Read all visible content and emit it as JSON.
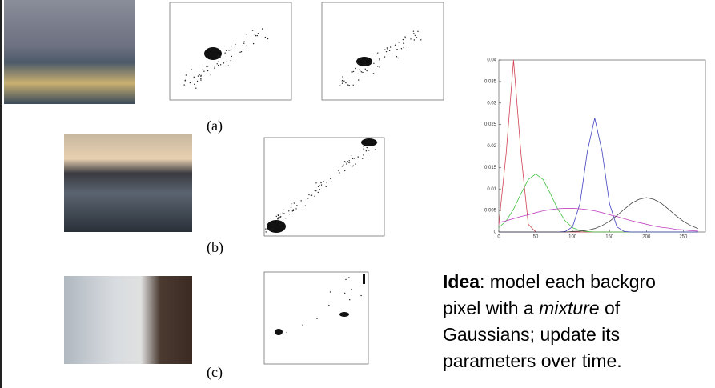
{
  "figures": {
    "labels": [
      "(a)",
      "(b)",
      "(c)"
    ]
  },
  "idea": {
    "lines": [
      [
        {
          "text": "Idea",
          "style": "bold"
        },
        {
          "text": ": model each backgro"
        }
      ],
      [
        {
          "text": "pixel with a "
        },
        {
          "text": "mixture",
          "style": "italic"
        },
        {
          "text": " of"
        }
      ],
      [
        {
          "text": "Gaussians; update its"
        }
      ],
      [
        {
          "text": "parameters over time."
        }
      ]
    ]
  },
  "chart_data": {
    "type": "line",
    "x": [
      0,
      10,
      20,
      30,
      40,
      50,
      60,
      70,
      80,
      90,
      100,
      110,
      120,
      130,
      140,
      150,
      160,
      170,
      180,
      190,
      200,
      210,
      220,
      230,
      240,
      250,
      260,
      270
    ],
    "series": [
      {
        "color": "#d04050",
        "values": [
          0.0018,
          0.0183,
          0.04,
          0.0183,
          0.0018,
          0,
          0,
          0,
          0,
          0,
          0,
          0,
          0,
          0,
          0,
          0,
          0,
          0,
          0,
          0,
          0,
          0,
          0,
          0,
          0,
          0,
          0,
          0
        ]
      },
      {
        "color": "#40c040",
        "values": [
          0.001,
          0.0026,
          0.0053,
          0.0089,
          0.0122,
          0.0135,
          0.0122,
          0.0089,
          0.0053,
          0.0026,
          0.001,
          0.0003,
          0.0001,
          0,
          0,
          0,
          0,
          0,
          0,
          0,
          0,
          0,
          0,
          0,
          0,
          0,
          0,
          0
        ]
      },
      {
        "color": "#4040c0",
        "values": [
          0,
          0,
          0,
          0,
          0,
          0,
          0,
          0,
          0,
          0.0001,
          0.0012,
          0.0066,
          0.0187,
          0.0265,
          0.0187,
          0.0066,
          0.0012,
          0.0001,
          0,
          0,
          0,
          0,
          0,
          0,
          0,
          0,
          0,
          0
        ]
      },
      {
        "color": "#c040c0",
        "values": [
          0.0022,
          0.0026,
          0.0031,
          0.0036,
          0.004,
          0.0045,
          0.0049,
          0.0052,
          0.0054,
          0.0055,
          0.0055,
          0.0054,
          0.0052,
          0.0049,
          0.0045,
          0.004,
          0.0036,
          0.0031,
          0.0026,
          0.0022,
          0.0018,
          0.0014,
          0.0011,
          0.0009,
          0.0006,
          0.0005,
          0.0003,
          0.0002
        ]
      },
      {
        "color": "#404040",
        "values": [
          0,
          0,
          0,
          0,
          0,
          0,
          0,
          0,
          0,
          0,
          0.0001,
          0.0002,
          0.0004,
          0.0008,
          0.0015,
          0.0025,
          0.0038,
          0.0053,
          0.0067,
          0.0076,
          0.008,
          0.0076,
          0.0067,
          0.0053,
          0.0038,
          0.0025,
          0.0015,
          0.0008
        ]
      }
    ],
    "xlim": [
      0,
      280
    ],
    "ylim": [
      0,
      0.04
    ],
    "xticks": [
      0,
      50,
      100,
      150,
      200,
      250
    ],
    "yticks": [
      0,
      0.005,
      0.01,
      0.015,
      0.02,
      0.025,
      0.03,
      0.035,
      0.04
    ]
  }
}
